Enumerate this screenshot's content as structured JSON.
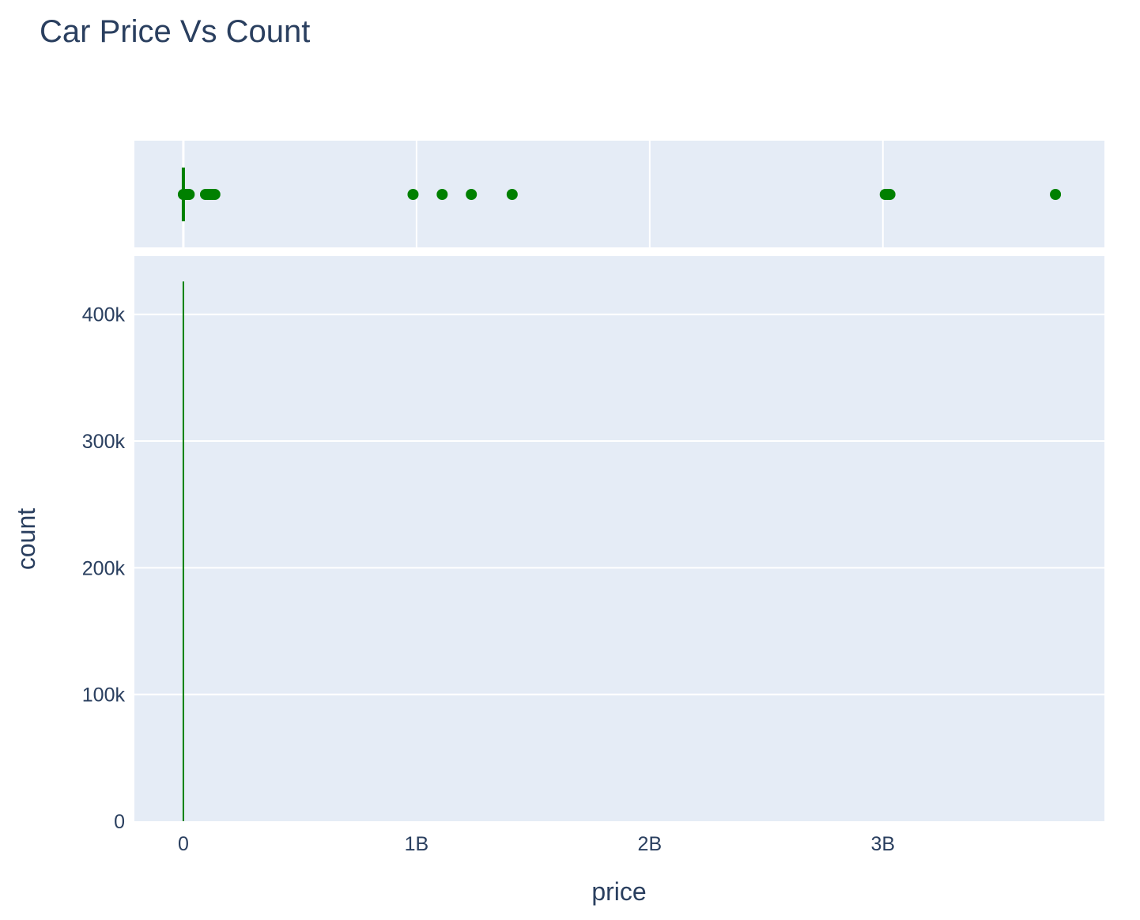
{
  "chart_data": {
    "type": "histogram",
    "title": "Car Price Vs Count",
    "xlabel": "price",
    "ylabel": "count",
    "xlim": [
      -210000000,
      3950000000
    ],
    "ylim": [
      0,
      446000
    ],
    "x_ticks": [
      {
        "value": 0,
        "label": "0"
      },
      {
        "value": 1000000000,
        "label": "1B"
      },
      {
        "value": 2000000000,
        "label": "2B"
      },
      {
        "value": 3000000000,
        "label": "3B"
      }
    ],
    "y_ticks": [
      {
        "value": 0,
        "label": "0"
      },
      {
        "value": 100000,
        "label": "100k"
      },
      {
        "value": 200000,
        "label": "200k"
      },
      {
        "value": 300000,
        "label": "300k"
      },
      {
        "value": 400000,
        "label": "400k"
      }
    ],
    "grid": true,
    "colors": {
      "marker": "#008000",
      "plot_bg": "#e5ecf6",
      "grid": "#ffffff",
      "text": "#2a3f5f"
    },
    "histogram_bars": [
      {
        "x": 0,
        "count": 426000
      }
    ],
    "marginal_box": {
      "type": "box",
      "whisker_low": 0,
      "whisker_high": 6000000,
      "outliers": [
        0,
        2000000,
        5000000,
        8000000,
        12000000,
        20000000,
        25000000,
        95000000,
        105000000,
        115000000,
        125000000,
        135000000,
        985000000,
        1110000000,
        1235000000,
        1410000000,
        3010000000,
        3020000000,
        3030000000,
        3740000000
      ]
    }
  }
}
